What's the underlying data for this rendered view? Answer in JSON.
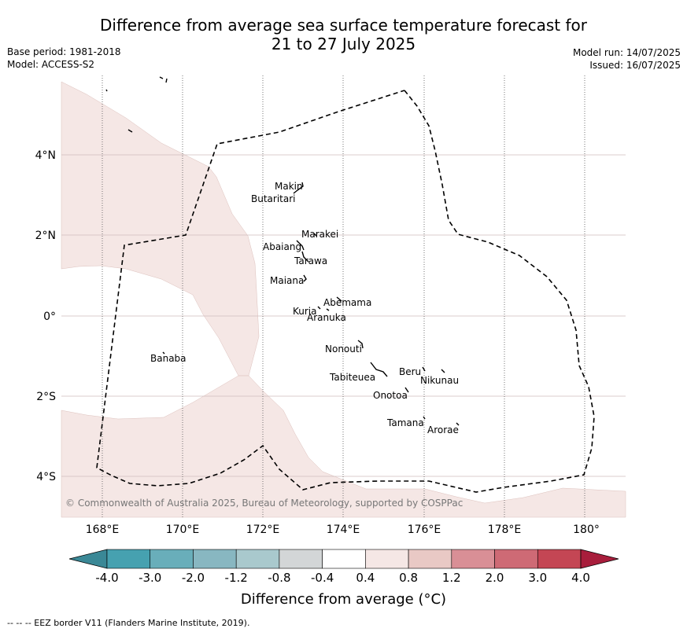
{
  "title_line1": "Difference from average sea surface temperature forecast for",
  "title_line2": "21 to 27 July 2025",
  "base_period": "Base period: 1981-2018",
  "model": "Model: ACCESS-S2",
  "model_run": "Model run: 14/07/2025",
  "issued": "Issued: 16/07/2025",
  "lat_labels": [
    "4°N",
    "2°N",
    "0°",
    "2°S",
    "4°S"
  ],
  "lon_labels": [
    "168°E",
    "170°E",
    "172°E",
    "174°E",
    "176°E",
    "178°E",
    "180°"
  ],
  "islands": [
    "Makin",
    "Butaritari",
    "Marakei",
    "Abaiang",
    "Tarawa",
    "Maiana",
    "Abemama",
    "Kuria",
    "Aranuka",
    "Nonouti",
    "Banaba",
    "Beru",
    "Nikunau",
    "Tabiteuea",
    "Onotoa",
    "Tamana",
    "Arorae"
  ],
  "copyright": "© Commonwealth of Australia 2025, Bureau of Meteorology, supported by COSPPac",
  "colorbar": {
    "ticks": [
      "-4.0",
      "-3.0",
      "-2.0",
      "-1.2",
      "-0.8",
      "-0.4",
      "0.4",
      "0.8",
      "1.2",
      "2.0",
      "3.0",
      "4.0"
    ],
    "colors": [
      "#3a8896",
      "#46a1b0",
      "#69aeba",
      "#88b7c1",
      "#a9c9cd",
      "#d3d6d7",
      "#ffffff",
      "#f5e7e5",
      "#e9c9c5",
      "#d98f96",
      "#ce6a75",
      "#c44654",
      "#a81e3c"
    ],
    "label": "Difference from average (°C)"
  },
  "footer": "--  --  -- EEZ border V11 (Flanders Marine Institute, 2019).",
  "anomaly_fill_color": "#f5e7e5"
}
